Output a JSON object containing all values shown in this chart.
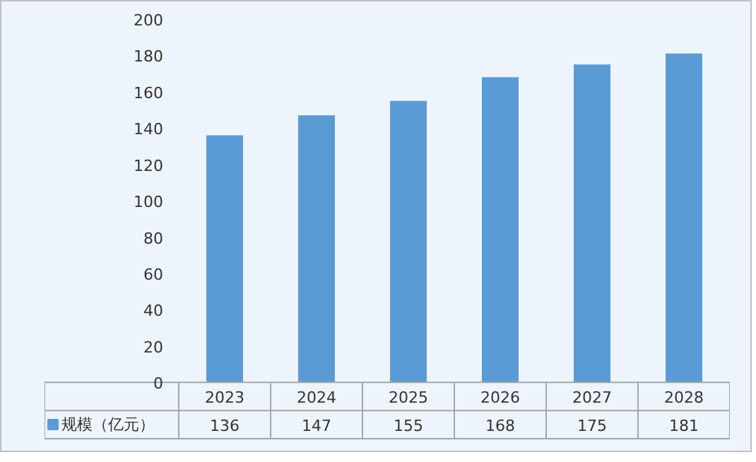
{
  "chart_data": {
    "type": "bar",
    "categories": [
      "2023",
      "2024",
      "2025",
      "2026",
      "2027",
      "2028"
    ],
    "series": [
      {
        "name": "规模（亿元）",
        "color": "#5b9bd5",
        "values": [
          136,
          147,
          155,
          168,
          175,
          181
        ]
      }
    ],
    "ylim": [
      0,
      200
    ],
    "yticks": [
      0,
      20,
      40,
      60,
      80,
      100,
      120,
      140,
      160,
      180,
      200
    ],
    "grid": false,
    "legend": "bottom",
    "data_labels": true
  }
}
